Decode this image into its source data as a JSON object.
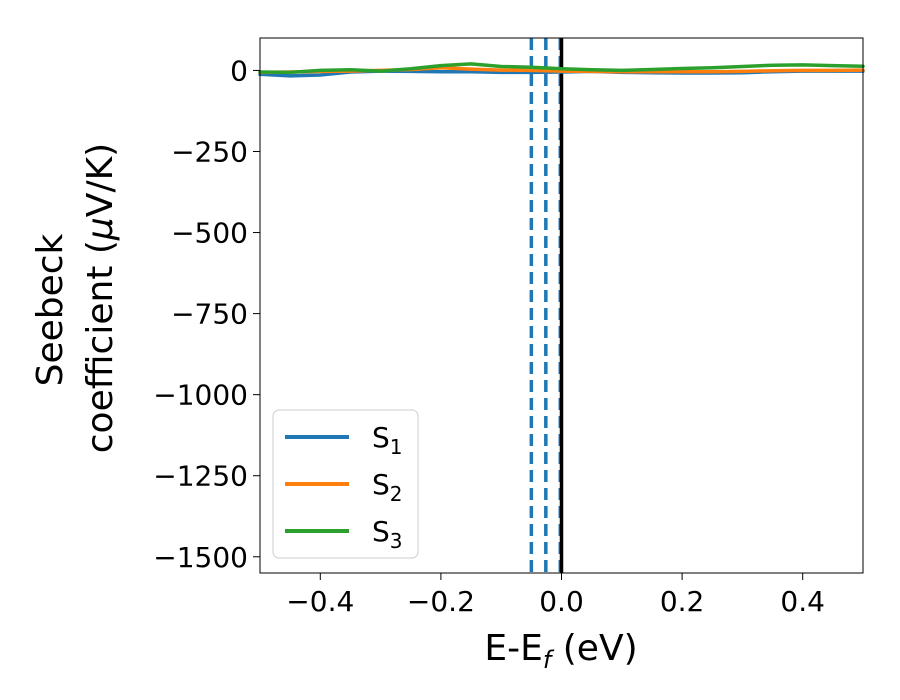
{
  "chart_data": {
    "type": "line",
    "xlabel": {
      "main": "E-E",
      "sub": "f",
      "tail": " (eV)"
    },
    "ylabel": {
      "line1": "Seebeck",
      "line2_main": "coefficient  (",
      "line2_mu": "μ",
      "line2_tail": "V/K)"
    },
    "xlim": [
      -0.5,
      0.5
    ],
    "ylim": [
      -1550,
      100
    ],
    "xticks": [
      -0.4,
      -0.2,
      0.0,
      0.2,
      0.4
    ],
    "xtick_labels": [
      "−0.4",
      "−0.2",
      "0.0",
      "0.2",
      "0.4"
    ],
    "yticks": [
      0,
      -250,
      -500,
      -750,
      -1000,
      -1250,
      -1500
    ],
    "ytick_labels": [
      "0",
      "−250",
      "−500",
      "−750",
      "−1000",
      "−1250",
      "−1500"
    ],
    "legend_position": "lower-left",
    "series": [
      {
        "name": "S1",
        "label_main": "S",
        "label_sub": "1",
        "color": "#1f77b4",
        "x": [
          -0.5,
          -0.45,
          -0.4,
          -0.35,
          -0.3,
          -0.25,
          -0.2,
          -0.15,
          -0.1,
          -0.05,
          0.0,
          0.05,
          0.1,
          0.15,
          0.2,
          0.25,
          0.3,
          0.35,
          0.4,
          0.45,
          0.5
        ],
        "y": [
          -12,
          -17,
          -14,
          -5,
          -2,
          -3,
          -4,
          -4,
          -6,
          -6,
          -5,
          -3,
          -6,
          -7,
          -8,
          -8,
          -7,
          -4,
          -2,
          -2,
          -2
        ]
      },
      {
        "name": "S2",
        "label_main": "S",
        "label_sub": "2",
        "color": "#ff7f0e",
        "x": [
          -0.5,
          -0.45,
          -0.4,
          -0.35,
          -0.3,
          -0.25,
          -0.2,
          -0.15,
          -0.1,
          -0.05,
          0.0,
          0.05,
          0.1,
          0.15,
          0.2,
          0.25,
          0.3,
          0.35,
          0.4,
          0.45,
          0.5
        ],
        "y": [
          -6,
          -5,
          -3,
          -2,
          0,
          3,
          8,
          4,
          1,
          0,
          -2,
          -3,
          -4,
          -4,
          -4,
          -4,
          -3,
          -1,
          0,
          0,
          1
        ]
      },
      {
        "name": "S3",
        "label_main": "S",
        "label_sub": "3",
        "color": "#2ca02c",
        "x": [
          -0.5,
          -0.45,
          -0.4,
          -0.35,
          -0.3,
          -0.25,
          -0.2,
          -0.15,
          -0.1,
          -0.05,
          0.0,
          0.05,
          0.1,
          0.15,
          0.2,
          0.25,
          0.3,
          0.35,
          0.4,
          0.45,
          0.5
        ],
        "y": [
          -5,
          -6,
          0,
          2,
          -2,
          5,
          15,
          20,
          12,
          10,
          5,
          2,
          0,
          3,
          6,
          8,
          12,
          16,
          17,
          15,
          13
        ]
      }
    ],
    "vlines": [
      {
        "x": -0.05,
        "color": "#1f77b4",
        "style": "dashed"
      },
      {
        "x": -0.026,
        "color": "#1f77b4",
        "style": "dashed"
      },
      {
        "x": -0.002,
        "color": "#1f77b4",
        "style": "dashed"
      },
      {
        "x": 0.0,
        "color": "#000000",
        "style": "solid"
      }
    ]
  }
}
